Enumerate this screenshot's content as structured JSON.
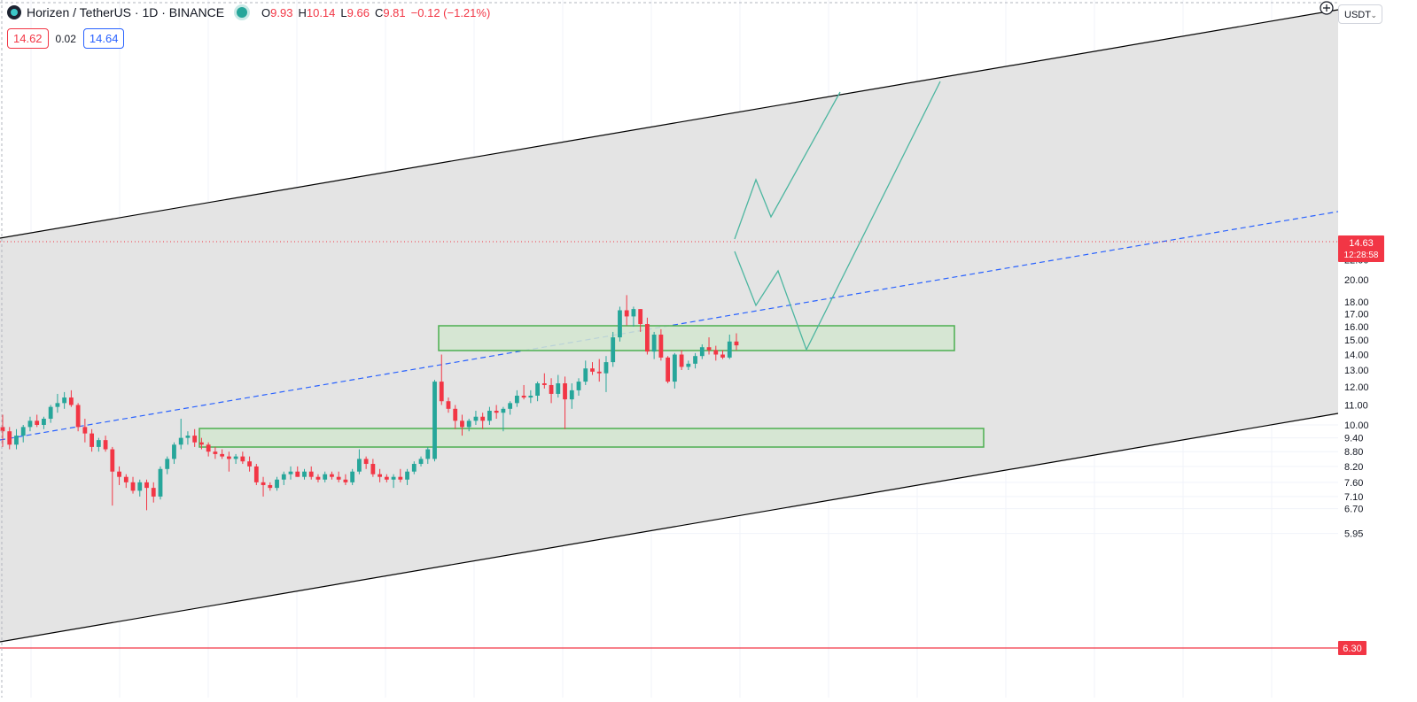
{
  "header": {
    "symbol": "Horizen / TetherUS · 1D · BINANCE",
    "ohlc": [
      {
        "k": "O",
        "v": "9.93"
      },
      {
        "k": "H",
        "v": "10.14"
      },
      {
        "k": "L",
        "v": "9.66"
      },
      {
        "k": "C",
        "v": "9.81"
      }
    ],
    "change": "−0.12 (−1.21%)",
    "sell": "14.62",
    "spread": "0.02",
    "buy": "14.64",
    "currency": "USDT"
  },
  "colors": {
    "up": "#26a69a",
    "down": "#f23645",
    "channel_line": "#000000",
    "channel_fill": "#e3e3e3",
    "zone_border": "#4caf50",
    "zone_fill": "#d3e6d0",
    "midline": "#2962ff",
    "projection": "#4db6a0",
    "support_line": "#f23645",
    "price_line": "#f23645"
  },
  "chart_data": {
    "type": "candlestick",
    "scale": "log",
    "grid": true,
    "yticks": [
      "22.00",
      "20.00",
      "18.00",
      "17.00",
      "16.00",
      "15.00",
      "14.00",
      "13.00",
      "12.00",
      "11.00",
      "10.00",
      "9.40",
      "8.80",
      "8.20",
      "7.60",
      "7.10",
      "6.70",
      "5.95"
    ],
    "ylim": [
      5.85,
      24.6
    ],
    "last_price": "14.63",
    "countdown": "12:28:58",
    "support_level": "6.30",
    "candles": [
      {
        "o": 9.9,
        "h": 10.5,
        "l": 9.0,
        "c": 9.7
      },
      {
        "o": 9.7,
        "h": 9.9,
        "l": 8.9,
        "c": 9.1
      },
      {
        "o": 9.1,
        "h": 9.8,
        "l": 8.9,
        "c": 9.5
      },
      {
        "o": 9.5,
        "h": 10.0,
        "l": 9.2,
        "c": 9.9
      },
      {
        "o": 9.9,
        "h": 10.4,
        "l": 9.7,
        "c": 10.2
      },
      {
        "o": 10.2,
        "h": 10.5,
        "l": 9.9,
        "c": 10.0
      },
      {
        "o": 10.0,
        "h": 10.4,
        "l": 9.8,
        "c": 10.3
      },
      {
        "o": 10.3,
        "h": 11.0,
        "l": 10.1,
        "c": 10.9
      },
      {
        "o": 10.9,
        "h": 11.6,
        "l": 10.6,
        "c": 11.1
      },
      {
        "o": 11.1,
        "h": 11.7,
        "l": 10.8,
        "c": 11.4
      },
      {
        "o": 11.4,
        "h": 11.8,
        "l": 10.9,
        "c": 11.0
      },
      {
        "o": 11.0,
        "h": 11.1,
        "l": 9.7,
        "c": 9.9
      },
      {
        "o": 9.9,
        "h": 10.3,
        "l": 9.2,
        "c": 9.6
      },
      {
        "o": 9.6,
        "h": 9.8,
        "l": 8.8,
        "c": 9.0
      },
      {
        "o": 9.0,
        "h": 9.4,
        "l": 8.8,
        "c": 9.3
      },
      {
        "o": 9.3,
        "h": 9.5,
        "l": 8.8,
        "c": 8.9
      },
      {
        "o": 8.9,
        "h": 9.0,
        "l": 6.8,
        "c": 8.0
      },
      {
        "o": 8.0,
        "h": 8.2,
        "l": 7.5,
        "c": 7.8
      },
      {
        "o": 7.8,
        "h": 7.9,
        "l": 7.4,
        "c": 7.6
      },
      {
        "o": 7.6,
        "h": 7.8,
        "l": 7.2,
        "c": 7.3
      },
      {
        "o": 7.3,
        "h": 7.7,
        "l": 7.1,
        "c": 7.6
      },
      {
        "o": 7.6,
        "h": 7.7,
        "l": 6.65,
        "c": 7.4
      },
      {
        "o": 7.4,
        "h": 7.6,
        "l": 6.9,
        "c": 7.1
      },
      {
        "o": 7.1,
        "h": 8.2,
        "l": 7.0,
        "c": 8.1
      },
      {
        "o": 8.1,
        "h": 8.6,
        "l": 7.9,
        "c": 8.5
      },
      {
        "o": 8.5,
        "h": 9.2,
        "l": 8.3,
        "c": 9.1
      },
      {
        "o": 9.1,
        "h": 10.3,
        "l": 8.9,
        "c": 9.4
      },
      {
        "o": 9.4,
        "h": 9.7,
        "l": 9.1,
        "c": 9.5
      },
      {
        "o": 9.5,
        "h": 9.8,
        "l": 9.0,
        "c": 9.2
      },
      {
        "o": 9.2,
        "h": 9.4,
        "l": 8.9,
        "c": 9.1
      },
      {
        "o": 9.1,
        "h": 9.2,
        "l": 8.6,
        "c": 8.8
      },
      {
        "o": 8.8,
        "h": 9.0,
        "l": 8.5,
        "c": 8.7
      },
      {
        "o": 8.7,
        "h": 8.9,
        "l": 8.5,
        "c": 8.6
      },
      {
        "o": 8.6,
        "h": 8.8,
        "l": 8.0,
        "c": 8.5
      },
      {
        "o": 8.5,
        "h": 8.7,
        "l": 8.3,
        "c": 8.6
      },
      {
        "o": 8.6,
        "h": 8.8,
        "l": 8.3,
        "c": 8.4
      },
      {
        "o": 8.4,
        "h": 8.6,
        "l": 8.0,
        "c": 8.2
      },
      {
        "o": 8.2,
        "h": 8.3,
        "l": 7.5,
        "c": 7.6
      },
      {
        "o": 7.6,
        "h": 7.8,
        "l": 7.1,
        "c": 7.5
      },
      {
        "o": 7.5,
        "h": 7.6,
        "l": 7.3,
        "c": 7.4
      },
      {
        "o": 7.4,
        "h": 7.8,
        "l": 7.3,
        "c": 7.7
      },
      {
        "o": 7.7,
        "h": 8.0,
        "l": 7.5,
        "c": 7.9
      },
      {
        "o": 7.9,
        "h": 8.2,
        "l": 7.7,
        "c": 8.0
      },
      {
        "o": 8.0,
        "h": 8.2,
        "l": 7.8,
        "c": 7.8
      },
      {
        "o": 7.8,
        "h": 8.1,
        "l": 7.7,
        "c": 8.0
      },
      {
        "o": 8.0,
        "h": 8.2,
        "l": 7.7,
        "c": 7.8
      },
      {
        "o": 7.8,
        "h": 7.9,
        "l": 7.6,
        "c": 7.7
      },
      {
        "o": 7.7,
        "h": 8.0,
        "l": 7.6,
        "c": 7.9
      },
      {
        "o": 7.9,
        "h": 8.0,
        "l": 7.7,
        "c": 7.8
      },
      {
        "o": 7.8,
        "h": 8.0,
        "l": 7.6,
        "c": 7.7
      },
      {
        "o": 7.7,
        "h": 7.9,
        "l": 7.5,
        "c": 7.6
      },
      {
        "o": 7.6,
        "h": 8.1,
        "l": 7.5,
        "c": 8.0
      },
      {
        "o": 8.0,
        "h": 8.9,
        "l": 7.9,
        "c": 8.5
      },
      {
        "o": 8.5,
        "h": 8.6,
        "l": 8.1,
        "c": 8.3
      },
      {
        "o": 8.3,
        "h": 8.5,
        "l": 7.8,
        "c": 7.9
      },
      {
        "o": 7.9,
        "h": 8.1,
        "l": 7.6,
        "c": 7.8
      },
      {
        "o": 7.8,
        "h": 7.9,
        "l": 7.6,
        "c": 7.7
      },
      {
        "o": 7.7,
        "h": 7.9,
        "l": 7.4,
        "c": 7.8
      },
      {
        "o": 7.8,
        "h": 8.1,
        "l": 7.6,
        "c": 7.7
      },
      {
        "o": 7.7,
        "h": 8.1,
        "l": 7.5,
        "c": 8.0
      },
      {
        "o": 8.0,
        "h": 8.4,
        "l": 7.9,
        "c": 8.3
      },
      {
        "o": 8.3,
        "h": 8.6,
        "l": 8.2,
        "c": 8.5
      },
      {
        "o": 8.5,
        "h": 9.0,
        "l": 8.3,
        "c": 8.9
      },
      {
        "o": 8.5,
        "h": 12.4,
        "l": 8.4,
        "c": 12.3
      },
      {
        "o": 12.3,
        "h": 14.0,
        "l": 11.0,
        "c": 11.2
      },
      {
        "o": 11.2,
        "h": 11.4,
        "l": 10.6,
        "c": 10.8
      },
      {
        "o": 10.8,
        "h": 11.0,
        "l": 9.8,
        "c": 10.2
      },
      {
        "o": 10.2,
        "h": 10.5,
        "l": 9.5,
        "c": 9.9
      },
      {
        "o": 9.9,
        "h": 10.3,
        "l": 9.7,
        "c": 10.2
      },
      {
        "o": 10.2,
        "h": 10.7,
        "l": 10.0,
        "c": 10.4
      },
      {
        "o": 10.4,
        "h": 10.6,
        "l": 9.8,
        "c": 10.2
      },
      {
        "o": 10.2,
        "h": 10.9,
        "l": 10.0,
        "c": 10.7
      },
      {
        "o": 10.7,
        "h": 11.0,
        "l": 10.3,
        "c": 10.6
      },
      {
        "o": 10.6,
        "h": 10.9,
        "l": 9.7,
        "c": 10.8
      },
      {
        "o": 10.8,
        "h": 11.2,
        "l": 10.5,
        "c": 11.1
      },
      {
        "o": 11.1,
        "h": 11.8,
        "l": 10.9,
        "c": 11.5
      },
      {
        "o": 11.5,
        "h": 12.1,
        "l": 11.3,
        "c": 11.4
      },
      {
        "o": 11.4,
        "h": 11.8,
        "l": 11.1,
        "c": 11.5
      },
      {
        "o": 11.5,
        "h": 12.3,
        "l": 11.2,
        "c": 12.2
      },
      {
        "o": 12.2,
        "h": 12.8,
        "l": 11.9,
        "c": 12.1
      },
      {
        "o": 12.1,
        "h": 12.5,
        "l": 11.1,
        "c": 11.6
      },
      {
        "o": 11.6,
        "h": 12.7,
        "l": 11.4,
        "c": 12.2
      },
      {
        "o": 12.2,
        "h": 12.6,
        "l": 9.8,
        "c": 11.3
      },
      {
        "o": 11.3,
        "h": 12.2,
        "l": 10.8,
        "c": 11.8
      },
      {
        "o": 11.8,
        "h": 12.5,
        "l": 11.5,
        "c": 12.3
      },
      {
        "o": 12.3,
        "h": 13.6,
        "l": 12.1,
        "c": 13.1
      },
      {
        "o": 13.1,
        "h": 13.5,
        "l": 12.7,
        "c": 12.9
      },
      {
        "o": 12.9,
        "h": 13.7,
        "l": 12.3,
        "c": 12.8
      },
      {
        "o": 12.8,
        "h": 13.9,
        "l": 11.7,
        "c": 13.5
      },
      {
        "o": 13.5,
        "h": 15.6,
        "l": 13.2,
        "c": 15.2
      },
      {
        "o": 15.2,
        "h": 17.6,
        "l": 14.9,
        "c": 17.3
      },
      {
        "o": 17.3,
        "h": 18.6,
        "l": 16.1,
        "c": 16.8
      },
      {
        "o": 16.8,
        "h": 17.6,
        "l": 16.0,
        "c": 17.4
      },
      {
        "o": 17.4,
        "h": 17.4,
        "l": 15.6,
        "c": 16.2
      },
      {
        "o": 16.2,
        "h": 16.7,
        "l": 14.0,
        "c": 14.2
      },
      {
        "o": 14.2,
        "h": 15.6,
        "l": 13.7,
        "c": 15.4
      },
      {
        "o": 15.4,
        "h": 15.8,
        "l": 13.6,
        "c": 13.8
      },
      {
        "o": 13.8,
        "h": 13.9,
        "l": 12.2,
        "c": 12.3
      },
      {
        "o": 12.3,
        "h": 14.1,
        "l": 11.9,
        "c": 14.0
      },
      {
        "o": 14.0,
        "h": 14.3,
        "l": 13.0,
        "c": 13.2
      },
      {
        "o": 13.2,
        "h": 13.6,
        "l": 13.0,
        "c": 13.4
      },
      {
        "o": 13.4,
        "h": 14.1,
        "l": 13.1,
        "c": 13.9
      },
      {
        "o": 13.9,
        "h": 14.7,
        "l": 13.7,
        "c": 14.5
      },
      {
        "o": 14.5,
        "h": 15.2,
        "l": 14.0,
        "c": 14.3
      },
      {
        "o": 14.3,
        "h": 14.6,
        "l": 13.6,
        "c": 14.0
      },
      {
        "o": 14.0,
        "h": 14.3,
        "l": 13.7,
        "c": 13.8
      },
      {
        "o": 13.8,
        "h": 15.4,
        "l": 13.7,
        "c": 14.9
      },
      {
        "o": 14.9,
        "h": 15.5,
        "l": 14.3,
        "c": 14.63
      }
    ]
  }
}
